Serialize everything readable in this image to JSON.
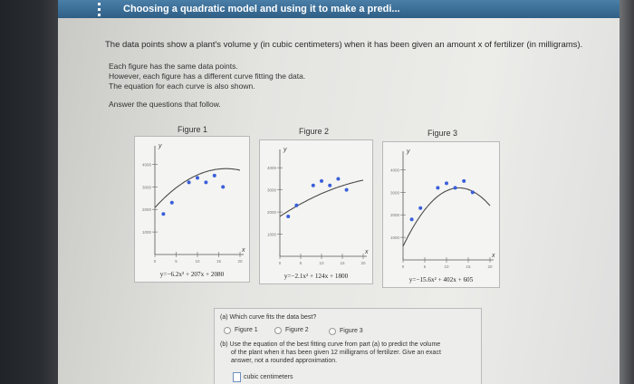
{
  "window": {
    "title": "Choosing a quadratic model and using it to make a predi..."
  },
  "prompt": {
    "intro": "The data points show a plant's volume y (in cubic centimeters) when it has been given an amount x of fertilizer (in milligrams).",
    "line1": "Each figure has the same data points.",
    "line2": "However, each figure has a different curve fitting the data.",
    "line3": "The equation for each curve is also shown.",
    "answer_prompt": "Answer the questions that follow."
  },
  "figures": [
    {
      "label": "Figure 1",
      "equation": "y=−6.2x² + 207x + 2080"
    },
    {
      "label": "Figure 2",
      "equation": "y=−2.1x² + 124x + 1800"
    },
    {
      "label": "Figure 3",
      "equation": "y=−15.6x² + 402x + 605"
    }
  ],
  "axes": {
    "y_letter": "y",
    "x_letter": "x",
    "y_ticks": [
      "4000",
      "3000",
      "2000",
      "1000"
    ],
    "x_ticks": [
      "0",
      "5",
      "10",
      "15",
      "20"
    ]
  },
  "question_a": {
    "text": "(a) Which curve fits the data best?",
    "options": [
      "Figure 1",
      "Figure 2",
      "Figure 3"
    ]
  },
  "question_b": {
    "line1": "(b) Use the equation of the best fitting curve from part (a) to predict the volume",
    "line2": "of the plant when it has been given 12 milligrams of fertilizer. Give an exact",
    "line3": "answer, not a rounded approximation.",
    "unit": "cubic centimeters"
  },
  "colors": {
    "titlebar": "#2f5f86",
    "dot": "#3a5fd9",
    "curve": "#4a4a4a"
  },
  "chart_data": {
    "type": "scatter",
    "points_x": [
      2,
      4,
      8,
      10,
      12,
      14,
      16
    ],
    "points_y": [
      1800,
      2300,
      3200,
      3400,
      3200,
      3500,
      3000
    ],
    "xlim": [
      0,
      20
    ],
    "ylim": [
      0,
      4500
    ]
  }
}
